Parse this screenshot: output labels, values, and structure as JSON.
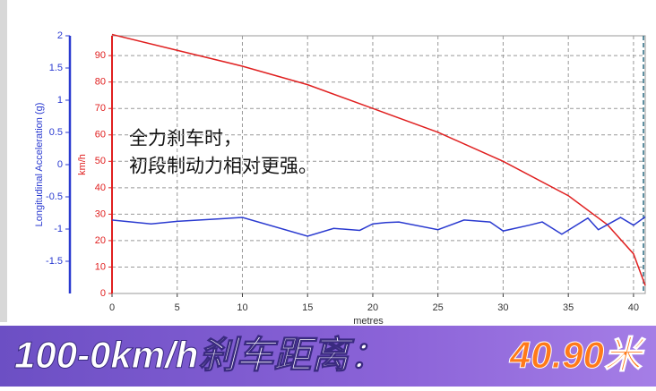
{
  "chart_data": {
    "type": "line",
    "xlabel": "metres",
    "ylabel": "Longitudinal Acceleration (g)",
    "y2label": "km/h",
    "xlim": [
      0,
      40.9
    ],
    "xticks": [
      0,
      5,
      10,
      15,
      20,
      25,
      30,
      35,
      40
    ],
    "ylim": [
      -2,
      2
    ],
    "yticks": [
      -1.5,
      -1,
      -0.5,
      0,
      0.5,
      1,
      1.5,
      2
    ],
    "y2lim": [
      0,
      97.5
    ],
    "y2ticks": [
      0,
      10,
      20,
      30,
      40,
      50,
      60,
      70,
      80,
      90
    ],
    "grid": true,
    "series": [
      {
        "color": "#e02020",
        "axis": "y2",
        "x": [
          0,
          5,
          10,
          15,
          20,
          25,
          30,
          35,
          38,
          40,
          40.9
        ],
        "values": [
          98,
          92,
          86,
          79,
          70,
          61,
          50,
          37,
          26,
          15,
          3
        ]
      },
      {
        "color": "#2a3ad0",
        "axis": "y",
        "x": [
          0,
          3,
          5,
          10,
          15,
          17,
          19,
          20,
          21,
          22,
          25,
          27,
          29,
          30,
          32,
          33,
          34.5,
          36.5,
          37.3,
          39,
          40,
          40.9
        ],
        "values": [
          -0.86,
          -0.92,
          -0.88,
          -0.82,
          -1.11,
          -0.99,
          -1.02,
          -0.92,
          -0.9,
          -0.89,
          -1.01,
          -0.86,
          -0.89,
          -1.03,
          -0.94,
          -0.89,
          -1.08,
          -0.83,
          -1.01,
          -0.82,
          -0.94,
          -0.81
        ]
      }
    ],
    "annotations": [
      "全力刹车时，",
      "初段制动力相对更强。"
    ],
    "banner": {
      "label": "100-0km/h刹车距离：",
      "value": "40.90米"
    }
  }
}
